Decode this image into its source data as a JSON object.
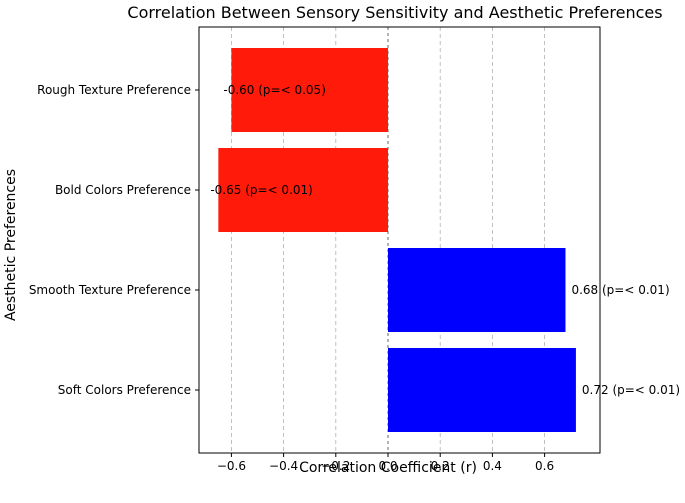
{
  "chart_data": {
    "type": "bar",
    "orientation": "horizontal",
    "title": "Correlation Between Sensory Sensitivity and Aesthetic Preferences",
    "xlabel": "Correlation Coefficient (r)",
    "ylabel": "Aesthetic Preferences",
    "xlim": [
      -0.72,
      0.8
    ],
    "x_ticks": [
      -0.6,
      -0.4,
      -0.2,
      0.0,
      0.2,
      0.4,
      0.6
    ],
    "x_tick_labels": [
      "−0.6",
      "−0.4",
      "−0.2",
      "0.0",
      "0.2",
      "0.4",
      "0.6"
    ],
    "grid": "vertical dashed",
    "zero_line": "dashed",
    "categories": [
      "Soft Colors Preference",
      "Smooth Texture Preference",
      "Bold Colors Preference",
      "Rough Texture Preference"
    ],
    "values": [
      0.72,
      0.68,
      -0.65,
      -0.6
    ],
    "data_labels": [
      "0.72 (p=< 0.01)",
      "0.68 (p=< 0.01)",
      "-0.65 (p=< 0.01)",
      "-0.60 (p=< 0.05)"
    ],
    "colors": {
      "positive": "#0000ff",
      "negative": "#ff1a0a",
      "grid": "#b0b0b0",
      "zero_line": "#777777"
    }
  }
}
